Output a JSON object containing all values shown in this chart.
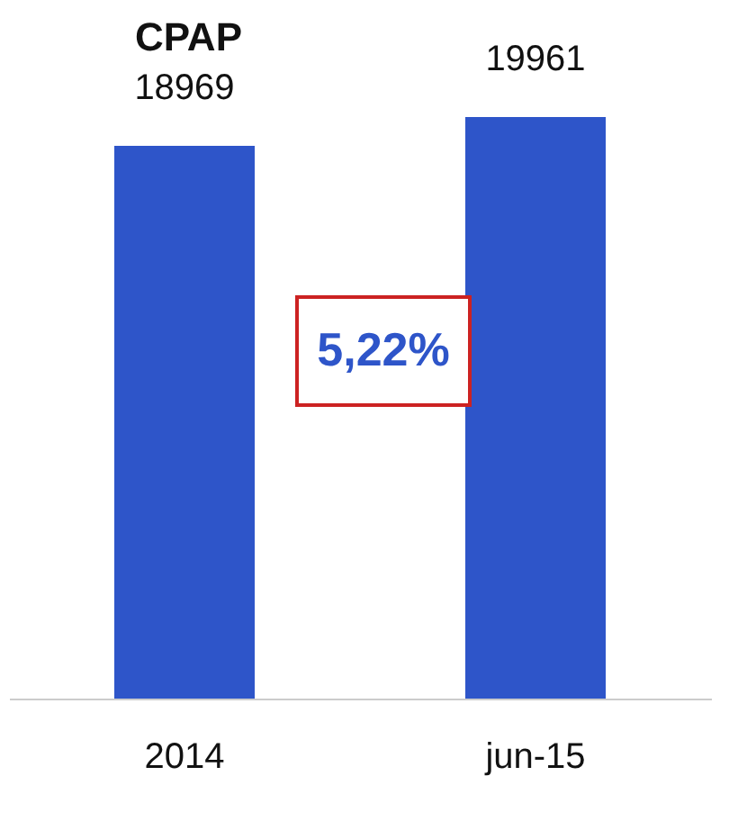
{
  "chart_data": {
    "type": "bar",
    "title": "CPAP",
    "categories": [
      "2014",
      "jun-15"
    ],
    "values": [
      18969,
      19961
    ],
    "color": "#2e55c9",
    "data_labels": true,
    "grid": false,
    "annotations": [
      "5,22%"
    ]
  }
}
